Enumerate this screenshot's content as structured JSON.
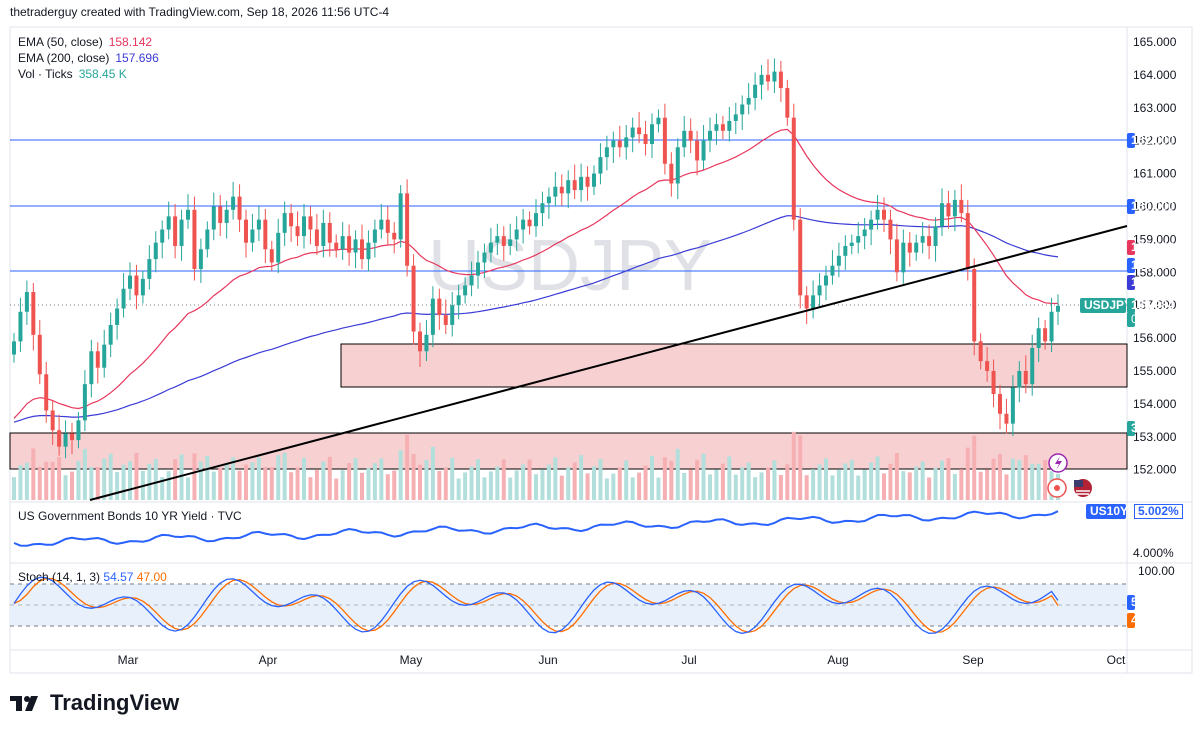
{
  "header": {
    "text": "thetraderguy created with TradingView.com, Sep 18, 2026 11:56 UTC-4"
  },
  "legend": {
    "ema50_label": "EMA (50, close)",
    "ema50_value": "158.142",
    "ema200_label": "EMA (200, close)",
    "ema200_value": "157.696",
    "vol_label": "Vol · Ticks",
    "vol_value": "358.45 K"
  },
  "watermark": "USDJPY",
  "symbol_tag": "USDJPY",
  "last_price": "156.984",
  "countdown": "05:03:16",
  "vol_tag": "358.45 K",
  "price_axis": [
    "165.000",
    "164.000",
    "163.000",
    "162.000",
    "161.000",
    "160.000",
    "159.000",
    "158.000",
    "157.000",
    "156.000",
    "155.000",
    "154.000",
    "153.000",
    "152.000"
  ],
  "price_tags": {
    "ema50": "158.142",
    "level_158": "158.000",
    "ema200": "157.696",
    "level_162": "162.000",
    "level_160": "160.000"
  },
  "time_axis": [
    "Mar",
    "Apr",
    "May",
    "Jun",
    "Jul",
    "Aug",
    "Sep",
    "Oct"
  ],
  "bond_panel": {
    "label": "US Government Bonds 10 YR Yield · TVC",
    "tag_symbol": "US10Y",
    "tag_value": "5.002%",
    "axis_label": "4.000%"
  },
  "stoch_panel": {
    "label": "Stoch (14, 1, 3)",
    "k_value": "54.57",
    "d_value": "47.00",
    "axis_top": "100.00",
    "tag_k": "54.57",
    "tag_d": "47.00"
  },
  "footer": {
    "brand": "TradingView"
  },
  "colors": {
    "up": "#26a69a",
    "down": "#ef5350",
    "ema50": "#e8365d",
    "ema200": "#3b3bd6",
    "hline": "#2962ff",
    "zone": "#f7d0d2",
    "stoch_k": "#2962ff",
    "stoch_d": "#ff6d00",
    "bond": "#2962ff",
    "vol_up": "#b2dfdb",
    "vol_down": "#f6b0b3"
  },
  "chart_data": {
    "type": "candlestick",
    "symbol": "USDJPY",
    "ylim": [
      151.5,
      165.5
    ],
    "horizontal_levels": [
      162.0,
      160.0,
      158.0
    ],
    "support_zone": [
      154.5,
      155.8
    ],
    "lower_zone": [
      152.0,
      153.2
    ],
    "trendline": {
      "from": [
        "2026-02-12",
        151.1
      ],
      "to": [
        "2026-09-30",
        159.4
      ]
    },
    "ema50_last": 158.142,
    "ema200_last": 157.696,
    "last": 156.984,
    "closes": [
      155.9,
      156.8,
      157.4,
      156.1,
      154.9,
      153.8,
      153.2,
      152.7,
      153.1,
      152.9,
      153.5,
      154.6,
      155.6,
      155.1,
      155.8,
      156.4,
      156.9,
      157.5,
      157.9,
      157.3,
      157.8,
      158.4,
      158.9,
      159.3,
      159.7,
      158.8,
      159.6,
      159.9,
      158.1,
      158.7,
      159.3,
      160.0,
      159.5,
      159.9,
      160.3,
      159.6,
      158.9,
      159.3,
      159.6,
      158.7,
      158.3,
      159.2,
      159.8,
      159.4,
      159.1,
      159.7,
      159.3,
      158.8,
      159.5,
      158.9,
      158.7,
      159.1,
      158.6,
      159.0,
      158.4,
      158.9,
      159.3,
      159.6,
      159.2,
      159.0,
      160.4,
      158.2,
      156.2,
      155.6,
      156.1,
      157.2,
      156.7,
      156.4,
      157.0,
      157.3,
      157.6,
      157.9,
      158.3,
      158.6,
      158.9,
      159.1,
      158.8,
      159.0,
      159.3,
      159.6,
      159.4,
      159.8,
      160.1,
      160.3,
      160.6,
      160.4,
      160.8,
      160.5,
      160.9,
      160.6,
      161.0,
      161.5,
      161.8,
      162.0,
      161.8,
      162.1,
      162.4,
      162.2,
      161.9,
      162.5,
      162.7,
      161.3,
      160.7,
      161.8,
      162.3,
      162.0,
      161.4,
      162.0,
      162.3,
      162.5,
      162.3,
      162.6,
      162.8,
      163.1,
      163.3,
      163.7,
      164.0,
      163.8,
      164.1,
      163.6,
      162.7,
      159.6,
      157.3,
      156.9,
      157.3,
      157.6,
      157.9,
      158.2,
      158.5,
      158.8,
      158.9,
      159.1,
      159.3,
      159.6,
      159.9,
      159.6,
      159.0,
      158.0,
      158.9,
      158.6,
      158.9,
      159.1,
      158.8,
      159.4,
      160.1,
      159.7,
      160.2,
      159.8,
      158.1,
      155.9,
      155.3,
      155.0,
      154.3,
      153.7,
      153.4,
      154.5,
      155.0,
      154.6,
      155.7,
      156.3,
      155.9,
      156.8,
      156.98
    ],
    "ema50_shape": "rises from ~152.5 (Feb) to ~158 (May), ~159.5 (Jul), peaks ~161.5 (late Jul), falls to 158.142",
    "ema200_shape": "rises from ~152.5 (Feb) to ~155 (May), ~157 (Jul), ~158 (Aug-Sep), ends 157.696",
    "us10y_last": 5.002,
    "stoch_k_last": 54.57,
    "stoch_d_last": 47.0,
    "x_months": [
      "Mar",
      "Apr",
      "May",
      "Jun",
      "Jul",
      "Aug",
      "Sep",
      "Oct"
    ]
  }
}
